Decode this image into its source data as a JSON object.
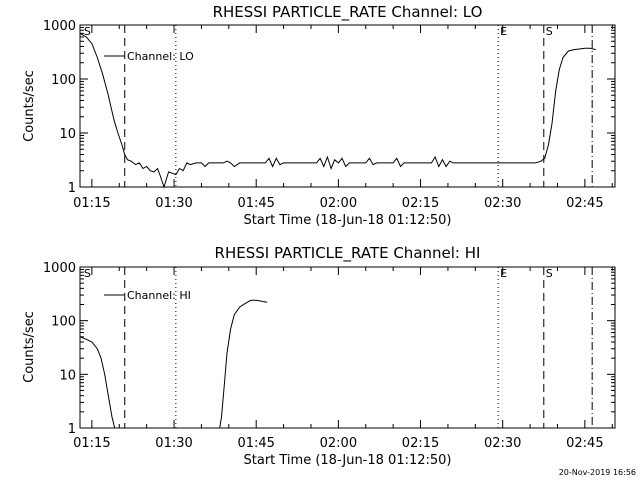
{
  "footer": "20-Nov-2019 16:56",
  "chart_data": [
    {
      "type": "line",
      "title": "RHESSI PARTICLE_RATE Channel: LO",
      "xlabel": "Start Time (18-Jun-18 01:12:50)",
      "ylabel": "Counts/sec",
      "y_scale": "log",
      "ylim": [
        1,
        1000
      ],
      "xlim": [
        "01:12:50",
        "02:50:30"
      ],
      "x_ticks": [
        "01:15",
        "01:30",
        "01:45",
        "02:00",
        "02:15",
        "02:30",
        "02:45"
      ],
      "y_ticks": [
        "1",
        "10",
        "100",
        "1000"
      ],
      "legend": {
        "position": "top-left",
        "entries": [
          "Channel: LO"
        ]
      },
      "markers": [
        {
          "label": "S",
          "time": "01:13:10",
          "style": "none"
        },
        {
          "time": "01:21:00",
          "style": "dashed"
        },
        {
          "time": "01:30:20",
          "style": "dotted"
        },
        {
          "label": "E",
          "time": "02:29:10",
          "style": "dotted"
        },
        {
          "label": "S",
          "time": "02:37:30",
          "style": "dashed"
        },
        {
          "time": "02:46:20",
          "style": "dash-dot"
        }
      ],
      "series": [
        {
          "name": "Channel: LO",
          "x": [
            "01:12:50",
            "01:14:00",
            "01:15:00",
            "01:16:00",
            "01:17:00",
            "01:18:00",
            "01:19:00",
            "01:19:45",
            "01:20:30",
            "01:21:00",
            "01:21:30",
            "01:22:10",
            "01:23:00",
            "01:23:40",
            "01:24:20",
            "01:25:00",
            "01:25:40",
            "01:26:20",
            "01:27:00",
            "01:27:30",
            "01:28:10",
            "01:29:00",
            "01:29:40",
            "01:30:20",
            "01:31:00",
            "01:31:40",
            "01:32:20",
            "01:33:00",
            "01:34:00",
            "01:35:00",
            "01:35:40",
            "01:36:20",
            "01:37:00",
            "01:38:00",
            "01:39:00",
            "01:39:40",
            "01:40:20",
            "01:41:00",
            "01:42:00",
            "01:43:00",
            "01:44:00",
            "01:45:00",
            "01:46:00",
            "01:46:40",
            "01:47:20",
            "01:48:00",
            "01:48:40",
            "01:49:20",
            "01:50:00",
            "01:51:00",
            "01:52:00",
            "01:53:00",
            "01:54:00",
            "01:55:00",
            "01:56:00",
            "01:56:40",
            "01:57:20",
            "01:58:00",
            "01:58:40",
            "01:59:20",
            "02:00:00",
            "02:00:40",
            "02:01:20",
            "02:02:00",
            "02:03:00",
            "02:04:00",
            "02:05:00",
            "02:05:40",
            "02:06:20",
            "02:07:00",
            "02:08:00",
            "02:09:00",
            "02:10:00",
            "02:10:40",
            "02:11:20",
            "02:12:00",
            "02:13:00",
            "02:14:00",
            "02:15:00",
            "02:16:00",
            "02:17:00",
            "02:17:40",
            "02:18:20",
            "02:19:00",
            "02:19:40",
            "02:20:20",
            "02:21:00",
            "02:22:00",
            "02:23:00",
            "02:24:00",
            "02:25:00",
            "02:26:00",
            "02:27:00",
            "02:28:00",
            "02:29:00",
            "02:30:00",
            "02:31:00",
            "02:32:00",
            "02:33:00",
            "02:34:00",
            "02:35:00",
            "02:36:00",
            "02:37:00",
            "02:37:40",
            "02:38:20",
            "02:39:00",
            "02:39:40",
            "02:40:20",
            "02:41:00",
            "02:42:00",
            "02:43:00",
            "02:44:00",
            "02:45:00",
            "02:46:00",
            "02:47:00"
          ],
          "y": [
            700,
            600,
            450,
            250,
            120,
            50,
            18,
            10,
            6,
            4,
            3.2,
            3,
            2.6,
            2.8,
            2.2,
            2.4,
            2,
            1.9,
            2.2,
            1.6,
            1,
            1.9,
            1.8,
            1.7,
            2.2,
            2,
            2.8,
            2.6,
            2.8,
            2.8,
            2.4,
            2.8,
            2.8,
            2.8,
            2.8,
            3,
            2.8,
            2.4,
            2.8,
            2.8,
            2.8,
            2.8,
            2.8,
            2.8,
            3.4,
            2.4,
            3.4,
            2.6,
            2.8,
            2.8,
            2.8,
            2.8,
            2.8,
            2.8,
            2.8,
            3.4,
            2.4,
            3.6,
            2.2,
            3.2,
            2.8,
            3.4,
            2.4,
            2.8,
            2.8,
            2.8,
            2.8,
            3.4,
            2.6,
            2.8,
            2.8,
            2.8,
            2.8,
            3.4,
            2.4,
            2.8,
            2.8,
            2.8,
            2.8,
            2.8,
            2.8,
            3.6,
            2.4,
            3.2,
            2.4,
            3,
            2.8,
            2.8,
            2.8,
            2.8,
            2.8,
            2.8,
            2.8,
            2.8,
            2.8,
            2.8,
            2.8,
            2.8,
            2.8,
            2.8,
            2.8,
            2.8,
            3,
            3.4,
            6,
            15,
            60,
            150,
            250,
            330,
            350,
            360,
            370,
            370,
            350
          ]
        }
      ]
    },
    {
      "type": "line",
      "title": "RHESSI PARTICLE_RATE Channel: HI",
      "xlabel": "Start Time (18-Jun-18 01:12:50)",
      "ylabel": "Counts/sec",
      "y_scale": "log",
      "ylim": [
        1,
        1000
      ],
      "xlim": [
        "01:12:50",
        "02:50:30"
      ],
      "x_ticks": [
        "01:15",
        "01:30",
        "01:45",
        "02:00",
        "02:15",
        "02:30",
        "02:45"
      ],
      "y_ticks": [
        "1",
        "10",
        "100",
        "1000"
      ],
      "legend": {
        "position": "top-left",
        "entries": [
          "Channel: HI"
        ]
      },
      "markers": [
        {
          "label": "S",
          "time": "01:13:10",
          "style": "none"
        },
        {
          "time": "01:21:00",
          "style": "dashed"
        },
        {
          "time": "01:30:20",
          "style": "dotted"
        },
        {
          "label": "E",
          "time": "02:29:10",
          "style": "dotted"
        },
        {
          "label": "S",
          "time": "02:37:30",
          "style": "dashed"
        },
        {
          "time": "02:46:20",
          "style": "dash-dot"
        }
      ],
      "series": [
        {
          "name": "Channel: HI",
          "x": [
            "01:12:50",
            "01:14:00",
            "01:15:00",
            "01:16:00",
            "01:16:40",
            "01:17:20",
            "01:18:00",
            "01:18:40",
            "01:19:10",
            "01:19:30",
            "01:38:20",
            "01:38:40",
            "01:39:10",
            "01:39:40",
            "01:40:20",
            "01:41:00",
            "01:42:00",
            "01:43:00",
            "01:44:00",
            "01:45:00",
            "01:46:00",
            "01:47:00"
          ],
          "y": [
            50,
            45,
            40,
            30,
            20,
            10,
            4,
            1.6,
            1,
            1,
            1,
            1.6,
            6,
            25,
            70,
            130,
            180,
            210,
            240,
            240,
            230,
            220
          ]
        }
      ]
    }
  ]
}
